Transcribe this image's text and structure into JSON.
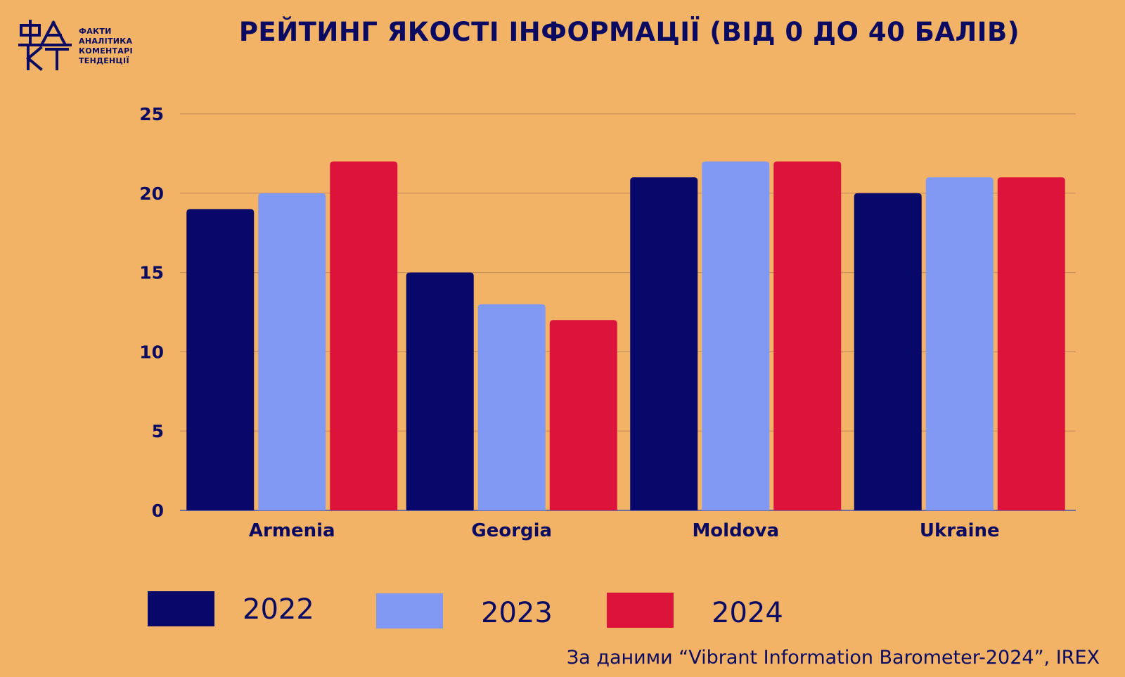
{
  "logo": {
    "lines": [
      "ФАКТИ",
      "АНАЛІТИКА",
      "КОМЕНТАРІ",
      "ТЕНДЕНЦІЇ"
    ]
  },
  "colors": {
    "background": "#f3b367",
    "text": "#0a0a62",
    "series_2022": "#07086a",
    "series_2023": "#8199f2",
    "series_2024": "#dc143c"
  },
  "chart_data": {
    "type": "bar",
    "title": "РЕЙТИНГ ЯКОСТІ ІНФОРМАЦІЇ (ВІД 0 ДО 40 БАЛІВ)",
    "categories": [
      "Armenia",
      "Georgia",
      "Moldova",
      "Ukraine"
    ],
    "series": [
      {
        "name": "2022",
        "values": [
          19,
          15,
          21,
          20
        ]
      },
      {
        "name": "2023",
        "values": [
          20,
          13,
          22,
          21
        ]
      },
      {
        "name": "2024",
        "values": [
          22,
          12,
          22,
          21
        ]
      }
    ],
    "ylim": [
      0,
      25
    ],
    "yticks": [
      "0",
      "5",
      "10",
      "15",
      "20",
      "25"
    ],
    "grid": true,
    "legend": "bottom"
  },
  "source": "За даними “Vibrant Information Barometer-2024”, IREX"
}
